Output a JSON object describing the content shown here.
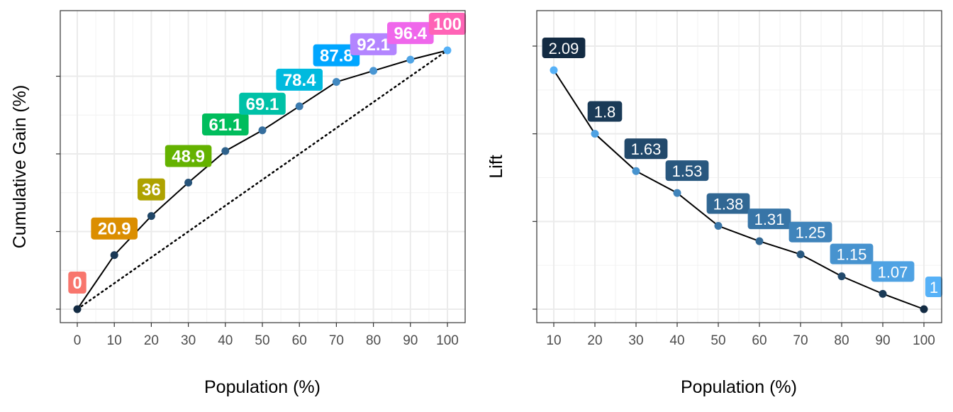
{
  "chart_data": [
    {
      "type": "line",
      "xlabel": "Population (%)",
      "ylabel": "Cumulative Gain (%)",
      "xlim": [
        0,
        100
      ],
      "ylim": [
        0,
        100
      ],
      "x_ticks": [
        "0",
        "10",
        "20",
        "30",
        "40",
        "50",
        "60",
        "70",
        "80",
        "90",
        "100"
      ],
      "x": [
        0,
        10,
        20,
        30,
        40,
        50,
        60,
        70,
        80,
        90,
        100
      ],
      "values": [
        0,
        20.9,
        36,
        48.9,
        61.1,
        69.1,
        78.4,
        87.8,
        92.1,
        96.4,
        100
      ],
      "labels": [
        "0",
        "20.9",
        "36",
        "48.9",
        "61.1",
        "69.1",
        "78.4",
        "87.8",
        "92.1",
        "96.4",
        "100"
      ],
      "label_colors": [
        "#F8766D",
        "#DB8E00",
        "#AEA200",
        "#64B200",
        "#00BD5C",
        "#00C1A7",
        "#00BADE",
        "#00A6FF",
        "#B385FF",
        "#EF67EB",
        "#FF63B6"
      ],
      "reference_line": {
        "style": "dotted",
        "from": [
          0,
          0
        ],
        "to": [
          100,
          100
        ]
      },
      "grid": true
    },
    {
      "type": "line",
      "xlabel": "Population (%)",
      "ylabel": "Lift",
      "xlim": [
        10,
        100
      ],
      "ylim": [
        1,
        2.09
      ],
      "x_ticks": [
        "10",
        "20",
        "30",
        "40",
        "50",
        "60",
        "70",
        "80",
        "90",
        "100"
      ],
      "x": [
        10,
        20,
        30,
        40,
        50,
        60,
        70,
        80,
        90,
        100
      ],
      "values": [
        2.09,
        1.8,
        1.63,
        1.53,
        1.38,
        1.31,
        1.25,
        1.15,
        1.07,
        1
      ],
      "labels": [
        "2.09",
        "1.8",
        "1.63",
        "1.53",
        "1.38",
        "1.31",
        "1.25",
        "1.15",
        "1.07",
        "1"
      ],
      "grid": true
    }
  ]
}
